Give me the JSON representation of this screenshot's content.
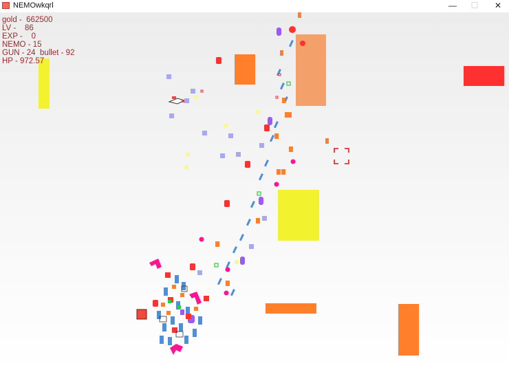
{
  "window": {
    "title": "NEMOwkqrl",
    "controls": {
      "minimize": "—",
      "maximize": "☐",
      "close": "✕"
    }
  },
  "hud": {
    "gold": "gold -  662500",
    "lv": "LV -    86",
    "exp": "EXP -    0",
    "nemo": "NEMO - 15",
    "gun": "GUN - 24  bullet - 92",
    "hp": "HP - 972.57"
  },
  "colors": {
    "hud_text": "#9a2a2a",
    "yellow": "#f2f22e",
    "orange": "#ff7f2a",
    "salmon": "#f3a06a",
    "red": "#ff3030",
    "magenta": "#ff1493",
    "blue": "#4f8fd9",
    "lavender": "#a8a8f0",
    "purple": "#9b59f6"
  },
  "icons": {
    "crosshair": "crosshair-icon",
    "player": "player-ship-icon"
  }
}
